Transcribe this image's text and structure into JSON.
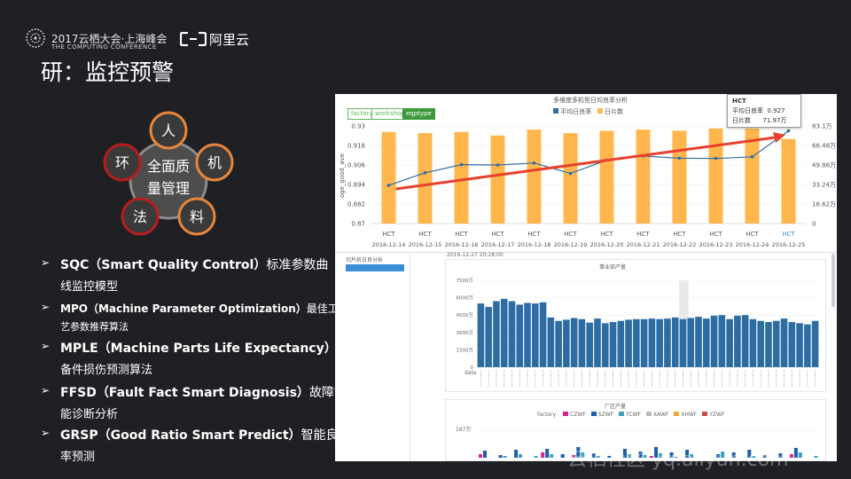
{
  "header": {
    "conference_name": "2017云栖大会·上海峰会",
    "conference_sub": "THE COMPUTING CONFERENCE",
    "brand_name": "阿里云"
  },
  "slide_title": "研：监控预警",
  "wheel": {
    "center": [
      "全面质",
      "量管理"
    ],
    "nodes": [
      "人",
      "机",
      "料",
      "法",
      "环"
    ]
  },
  "bullets": [
    {
      "mark": "➢",
      "head": "SQC（Smart Quality Control）",
      "head_cn": "标准参数曲",
      "line2": "线监控模型"
    },
    {
      "mark": "➢",
      "head": "MPO（Machine Parameter Optimization）",
      "head_cn": "最佳工",
      "line2": "艺参数推荐算法"
    },
    {
      "mark": "➢",
      "head": "MPLE（Machine Parts Life Expectancy）",
      "head_cn": "",
      "line2": "备件损伤预测算法"
    },
    {
      "mark": "➢",
      "head": "FFSD（Fault Fact Smart Diagnosis）",
      "head_cn": "故障智",
      "line2": "能诊断分析"
    },
    {
      "mark": "➢",
      "head": "GRSP（Good Ratio Smart Predict）",
      "head_cn": "智能良",
      "line2": "率预测"
    }
  ],
  "panel": {
    "tabs": [
      "factory",
      "workshop",
      "eqptype"
    ],
    "active_tab": "eqptype",
    "tooltip": {
      "title": "HCT",
      "rows": [
        [
          "平均日良率",
          "0.927"
        ],
        [
          "日片数",
          "71.97万"
        ]
      ]
    },
    "top_chart": {
      "legend": [
        "平均日良率",
        "日片数"
      ],
      "y_left_ticks": [
        "0.93",
        "0.918",
        "0.906",
        "0.894",
        "0.882",
        "0.87"
      ],
      "y_right_ticks": [
        "83.1万",
        "66.48万",
        "49.86万",
        "33.24万",
        "16.62万",
        "0"
      ],
      "ylabel": "oge_good_ave",
      "tick_name": "HCT",
      "x_dates": [
        "2016-12-14",
        "2016-12-15",
        "2016-12-16",
        "2016-12-17",
        "2016-12-18",
        "2016-12-19",
        "2016-12-20",
        "2016-12-21",
        "2016-12-22",
        "2016-12-23",
        "2016-12-24",
        "2016-12-25"
      ]
    },
    "left_title": "切片机日良分析",
    "middle_chart": {
      "title": "事业部产量",
      "y_ticks": [
        "7500万",
        "6000万",
        "4500万",
        "3000万",
        "1500万",
        "0"
      ],
      "x_label": "date",
      "timestamp": "2016-12-27 20:28:00"
    },
    "bottom_chart": {
      "title": "厂区产量",
      "legend_label": "factory",
      "legend": [
        "CZWF",
        "SZWF",
        "TCWF",
        "XAWF",
        "XHWF",
        "YZWF"
      ],
      "legend_colors": [
        "#e0218a",
        "#1f5ea8",
        "#3aa6b9",
        "#bbbbbb",
        "#f0a830",
        "#d04a4a"
      ],
      "y_tick": "167万"
    }
  },
  "watermark": "云栖社区 yq.aliyun.com",
  "chart_data": [
    {
      "type": "bar",
      "title": "多维度多机型日均良率分析",
      "categories": [
        "2016-12-14",
        "2016-12-15",
        "2016-12-16",
        "2016-12-17",
        "2016-12-18",
        "2016-12-19",
        "2016-12-20",
        "2016-12-21",
        "2016-12-22",
        "2016-12-23",
        "2016-12-24",
        "2016-12-25"
      ],
      "series": [
        {
          "name": "日片数",
          "type": "bar",
          "color": "#ffb74d",
          "values": [
            78,
            77,
            78,
            75,
            80,
            77,
            79,
            80,
            79,
            81,
            81,
            72
          ]
        },
        {
          "name": "平均日良率",
          "type": "line",
          "color": "#2e6da4",
          "values": [
            0.8935,
            0.9012,
            0.9062,
            0.906,
            0.9072,
            0.9008,
            0.909,
            0.9115,
            0.9102,
            0.91,
            0.911,
            0.927
          ]
        }
      ],
      "ylim_left": [
        0.87,
        0.93
      ],
      "ylim_right": [
        0,
        83.1
      ]
    },
    {
      "type": "bar",
      "title": "事业部产量",
      "series": [
        {
          "name": "",
          "color": "#2e6da4",
          "values": [
            5500,
            5200,
            5700,
            5900,
            5700,
            5400,
            5550,
            5500,
            5600,
            4300,
            4000,
            4100,
            4250,
            4150,
            3850,
            4200,
            3800,
            3900,
            4000,
            4100,
            4150,
            4150,
            4200,
            4150,
            4200,
            4300,
            4150,
            4250,
            4350,
            4200,
            4450,
            4500,
            4150,
            4450,
            4500,
            4150,
            4000,
            3900,
            4000,
            4200,
            3900,
            3800,
            3700,
            4000
          ]
        }
      ],
      "ylim": [
        0,
        7500
      ]
    }
  ]
}
